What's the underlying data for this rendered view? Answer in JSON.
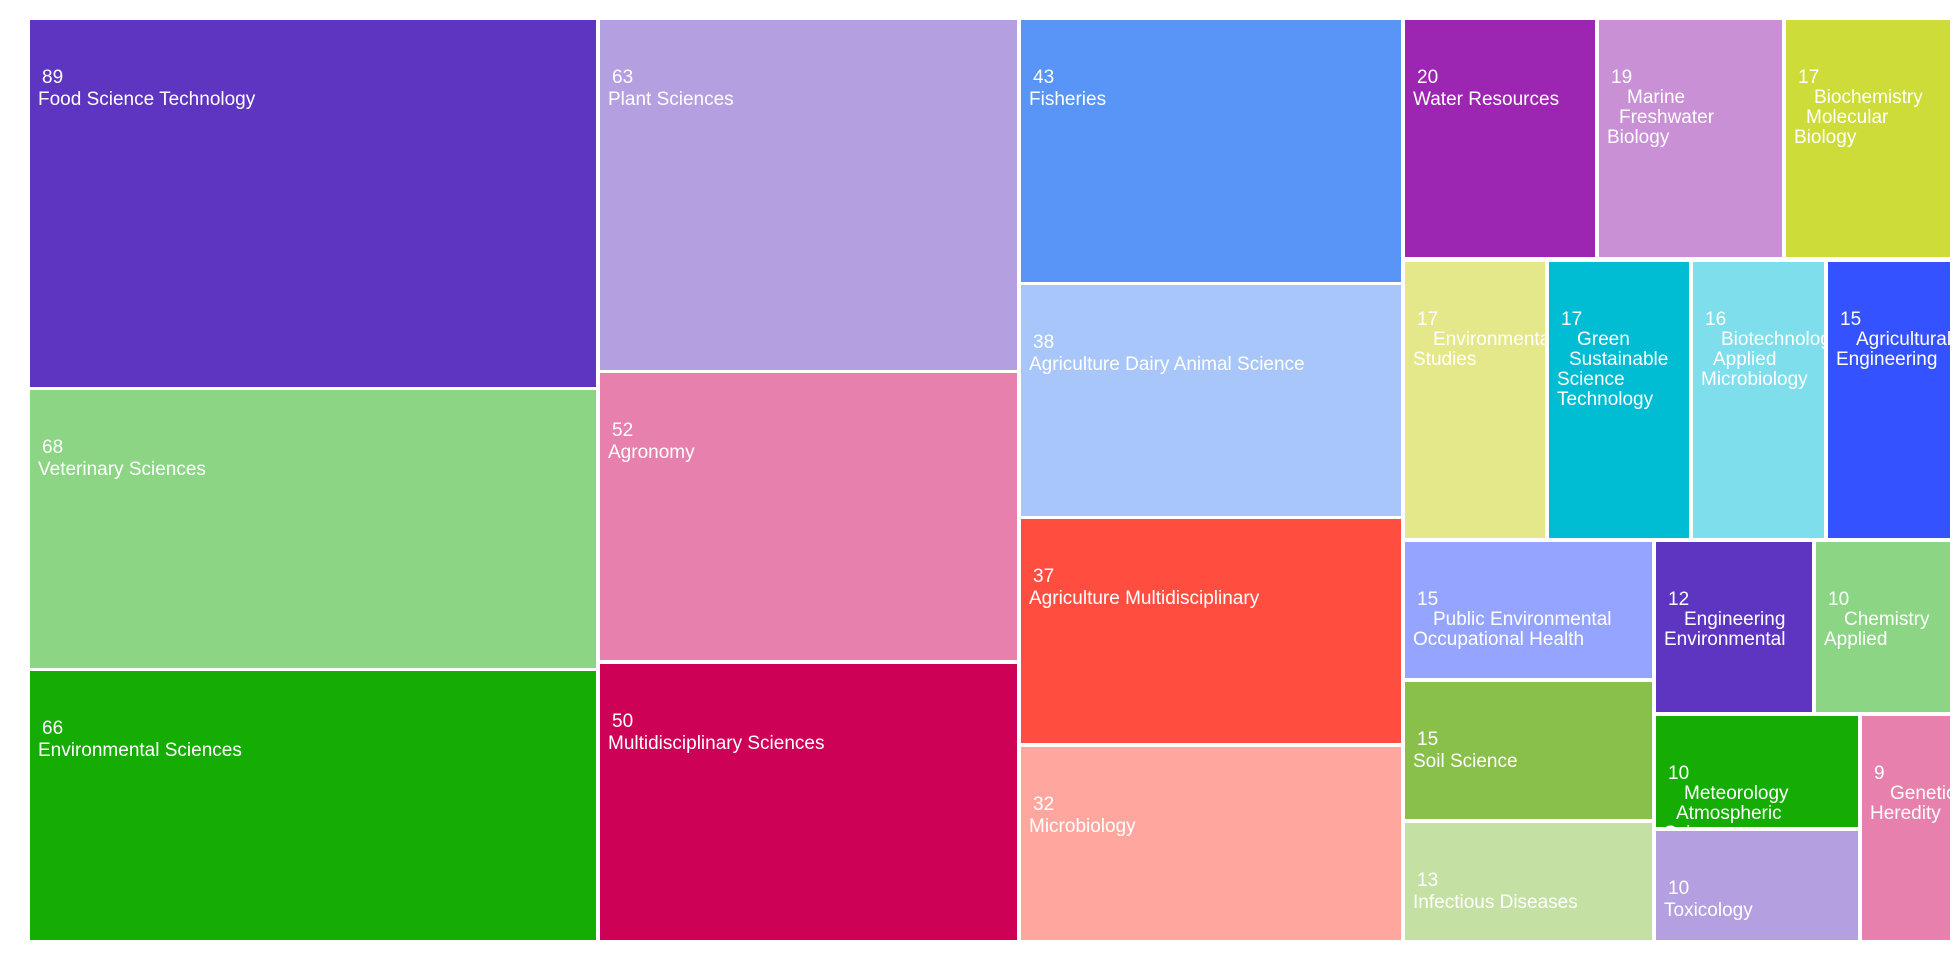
{
  "chart_data": {
    "type": "treemap",
    "title": "",
    "items": [
      {
        "label": "Food Science Technology",
        "value": 89,
        "color": "#5E35C0"
      },
      {
        "label": "Veterinary Sciences",
        "value": 68,
        "color": "#8CD585"
      },
      {
        "label": "Environmental Sciences",
        "value": 66,
        "color": "#15AD03"
      },
      {
        "label": "Plant Sciences",
        "value": 63,
        "color": "#B4A0E1"
      },
      {
        "label": "Agronomy",
        "value": 52,
        "color": "#E780AC"
      },
      {
        "label": "Multidisciplinary Sciences",
        "value": 50,
        "color": "#CD0256"
      },
      {
        "label": "Fisheries",
        "value": 43,
        "color": "#5895F6"
      },
      {
        "label": "Agriculture Dairy Animal Science",
        "value": 38,
        "color": "#A8C6F9"
      },
      {
        "label": "Agriculture Multidisciplinary",
        "value": 37,
        "color": "#FF4E3F"
      },
      {
        "label": "Microbiology",
        "value": 32,
        "color": "#FFA79F"
      },
      {
        "label": "Water Resources",
        "value": 20,
        "color": "#9C25B1"
      },
      {
        "label": "Marine\nFreshwater\nBiology",
        "value": 19,
        "color": "#C990D5"
      },
      {
        "label": "Biochemistry\nMolecular\nBiology",
        "value": 17,
        "color": "#CDDC39"
      },
      {
        "label": "Environmental\nStudies",
        "value": 17,
        "color": "#E4E88A"
      },
      {
        "label": "Green\nSustainable\nScience\nTechnology",
        "value": 17,
        "color": "#00BDD4"
      },
      {
        "label": "Biotechnology\nApplied\nMicrobiology",
        "value": 16,
        "color": "#7EDEEB"
      },
      {
        "label": "Agricultural\nEngineering",
        "value": 15,
        "color": "#3452FF"
      },
      {
        "label": "Public Environmental\nOccupational Health",
        "value": 15,
        "color": "#95A5FF"
      },
      {
        "label": "Soil Science",
        "value": 15,
        "color": "#89C04A"
      },
      {
        "label": "Infectious Diseases",
        "value": 13,
        "color": "#C4E1A3"
      },
      {
        "label": "Engineering\nEnvironmental",
        "value": 12,
        "color": "#5E35C0"
      },
      {
        "label": "Chemistry\nApplied",
        "value": 10,
        "color": "#8CD585"
      },
      {
        "label": "Meteorology\nAtmospheric\nSciences",
        "value": 10,
        "color": "#15AD03"
      },
      {
        "label": "Toxicology",
        "value": 10,
        "color": "#B4A0E1"
      },
      {
        "label": "Genetics\nHeredity",
        "value": 9,
        "color": "#E780AC"
      }
    ]
  }
}
